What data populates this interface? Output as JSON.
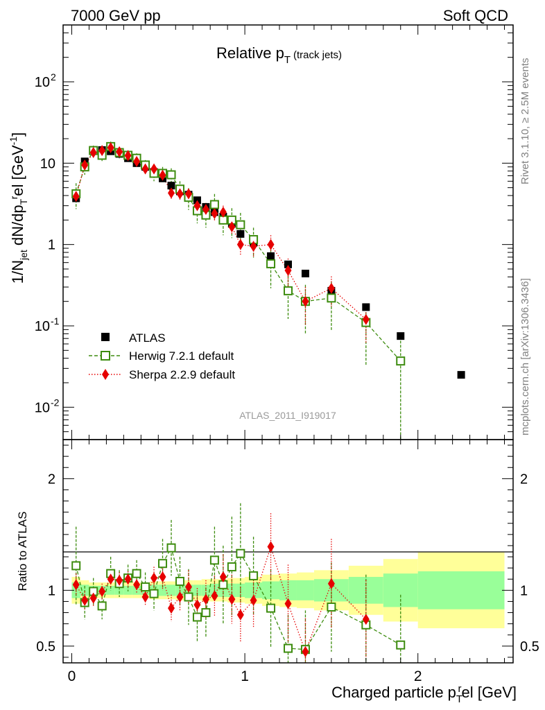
{
  "header": {
    "left": "7000 GeV pp",
    "right": "Soft QCD"
  },
  "side_text": {
    "top": "Rivet 3.1.10, ≥ 2.5M events",
    "bottom": "mcplots.cern.ch [arXiv:1306.3436]"
  },
  "analysis_id": "ATLAS_2011_I919017",
  "colors": {
    "atlas": "#000000",
    "herwig": "#3d8c0f",
    "sherpa": "#e60000",
    "band_inner": "#99ff99",
    "band_outer": "#ffff99"
  },
  "chart_data": [
    {
      "type": "scatter",
      "panel": "main",
      "title": "Relative p_T (track jets)",
      "ylabel": "1/N_jet dN/dp_T^rel [GeV^-1]",
      "yscale": "log",
      "ylim": [
        0.004,
        500
      ],
      "xlim": [
        -0.05,
        2.55
      ],
      "yticks": [
        "10^-2",
        "10^-1",
        "1",
        "10",
        "10^2"
      ],
      "legend_position": "lower-left",
      "series": [
        {
          "name": "ATLAS",
          "marker": "square-filled",
          "x": [
            0.025,
            0.075,
            0.125,
            0.175,
            0.225,
            0.275,
            0.325,
            0.375,
            0.425,
            0.475,
            0.525,
            0.575,
            0.625,
            0.675,
            0.725,
            0.775,
            0.825,
            0.875,
            0.925,
            0.975,
            1.05,
            1.15,
            1.25,
            1.35,
            1.5,
            1.7,
            1.9,
            2.25
          ],
          "y": [
            3.7,
            10.5,
            14.5,
            14.5,
            14.0,
            13.0,
            11.5,
            10.0,
            9.0,
            7.8,
            6.5,
            5.3,
            4.5,
            4.1,
            3.5,
            2.9,
            2.5,
            2.2,
            1.8,
            1.35,
            1.05,
            0.72,
            0.57,
            0.44,
            0.27,
            0.17,
            0.075,
            0.025
          ]
        },
        {
          "name": "Herwig 7.2.1 default",
          "marker": "square-open",
          "line": "dashed",
          "x": [
            0.025,
            0.075,
            0.125,
            0.175,
            0.225,
            0.275,
            0.325,
            0.375,
            0.425,
            0.475,
            0.525,
            0.575,
            0.625,
            0.675,
            0.725,
            0.775,
            0.825,
            0.875,
            0.925,
            0.975,
            1.05,
            1.15,
            1.25,
            1.35,
            1.5,
            1.7,
            1.9
          ],
          "y": [
            4.2,
            9.0,
            14.3,
            12.5,
            16.0,
            13.5,
            12.5,
            11.5,
            9.5,
            7.5,
            7.5,
            7.2,
            4.8,
            3.8,
            2.6,
            2.3,
            3.1,
            2.0,
            2.0,
            1.75,
            1.15,
            0.58,
            0.27,
            0.2,
            0.22,
            0.11,
            0.037
          ],
          "err_rel": [
            0.35,
            0.2,
            0.15,
            0.15,
            0.15,
            0.15,
            0.15,
            0.15,
            0.15,
            0.2,
            0.2,
            0.2,
            0.25,
            0.3,
            0.3,
            0.3,
            0.35,
            0.35,
            0.4,
            0.4,
            0.4,
            0.5,
            0.55,
            0.6,
            0.6,
            0.7,
            1.0
          ]
        },
        {
          "name": "Sherpa 2.2.9 default",
          "marker": "diamond-filled",
          "line": "dotted",
          "x": [
            0.025,
            0.075,
            0.125,
            0.175,
            0.225,
            0.275,
            0.325,
            0.375,
            0.425,
            0.475,
            0.525,
            0.575,
            0.625,
            0.675,
            0.725,
            0.775,
            0.825,
            0.875,
            0.925,
            0.975,
            1.05,
            1.15,
            1.25,
            1.35,
            1.5,
            1.7
          ],
          "y": [
            3.9,
            9.5,
            13.5,
            14.3,
            15.5,
            13.8,
            12.4,
            10.5,
            8.5,
            8.5,
            7.1,
            4.3,
            4.2,
            4.2,
            3.0,
            2.7,
            2.4,
            2.5,
            1.65,
            1.0,
            0.95,
            1.0,
            0.48,
            0.2,
            0.29,
            0.12
          ],
          "err_rel": [
            0.15,
            0.1,
            0.08,
            0.08,
            0.08,
            0.08,
            0.08,
            0.1,
            0.1,
            0.1,
            0.12,
            0.15,
            0.15,
            0.15,
            0.2,
            0.2,
            0.2,
            0.2,
            0.2,
            0.25,
            0.25,
            0.3,
            0.4,
            0.5,
            0.4,
            0.5
          ]
        }
      ]
    },
    {
      "type": "scatter",
      "panel": "ratio",
      "ylabel": "Ratio to ATLAS",
      "xlabel": "Charged particle p_T^rel [GeV]",
      "ylim": [
        0.35,
        2.35
      ],
      "xlim": [
        -0.05,
        2.55
      ],
      "xticks": [
        "0",
        "1",
        "2"
      ],
      "yticks": [
        "0.5",
        "1",
        "2"
      ],
      "band_edges": [
        0,
        0.05,
        0.1,
        0.15,
        0.2,
        0.25,
        0.3,
        0.35,
        0.4,
        0.45,
        0.5,
        0.55,
        0.6,
        0.65,
        0.7,
        0.75,
        0.8,
        0.85,
        0.9,
        0.95,
        1.0,
        1.1,
        1.2,
        1.3,
        1.4,
        1.6,
        1.8,
        2.0,
        2.5
      ],
      "band_inner": [
        0.07,
        0.05,
        0.04,
        0.04,
        0.04,
        0.04,
        0.04,
        0.04,
        0.04,
        0.05,
        0.05,
        0.05,
        0.05,
        0.05,
        0.05,
        0.05,
        0.06,
        0.06,
        0.06,
        0.06,
        0.07,
        0.08,
        0.09,
        0.09,
        0.1,
        0.12,
        0.15,
        0.17
      ],
      "band_outer": [
        0.12,
        0.09,
        0.07,
        0.07,
        0.07,
        0.07,
        0.07,
        0.07,
        0.07,
        0.08,
        0.08,
        0.08,
        0.09,
        0.09,
        0.09,
        0.1,
        0.1,
        0.1,
        0.11,
        0.11,
        0.12,
        0.14,
        0.15,
        0.16,
        0.18,
        0.22,
        0.28,
        0.34
      ],
      "series": [
        {
          "name": "Herwig 7.2.1 default",
          "x": [
            0.025,
            0.075,
            0.125,
            0.175,
            0.225,
            0.275,
            0.325,
            0.375,
            0.425,
            0.475,
            0.525,
            0.575,
            0.625,
            0.675,
            0.725,
            0.775,
            0.825,
            0.875,
            0.925,
            0.975,
            1.05,
            1.15,
            1.25,
            1.35,
            1.5,
            1.7,
            1.9
          ],
          "y": [
            1.22,
            0.89,
            0.99,
            0.86,
            1.15,
            1.06,
            1.11,
            1.15,
            1.03,
            0.97,
            1.24,
            1.38,
            1.08,
            0.94,
            0.76,
            0.8,
            1.27,
            1.05,
            1.21,
            1.33,
            1.13,
            0.84,
            0.48,
            0.47,
            0.85,
            0.69,
            0.51
          ],
          "err": [
            0.35,
            0.15,
            0.12,
            0.12,
            0.15,
            0.12,
            0.12,
            0.12,
            0.13,
            0.15,
            0.22,
            0.25,
            0.22,
            0.25,
            0.22,
            0.22,
            0.3,
            0.35,
            0.45,
            0.45,
            0.35,
            0.35,
            0.3,
            0.35,
            0.4,
            0.45,
            0.45
          ]
        },
        {
          "name": "Sherpa 2.2.9 default",
          "x": [
            0.025,
            0.075,
            0.125,
            0.175,
            0.225,
            0.275,
            0.325,
            0.375,
            0.425,
            0.475,
            0.525,
            0.575,
            0.625,
            0.675,
            0.725,
            0.775,
            0.825,
            0.875,
            0.925,
            0.975,
            1.05,
            1.15,
            1.25,
            1.35,
            1.5,
            1.7
          ],
          "y": [
            1.05,
            0.91,
            0.93,
            0.99,
            1.1,
            1.09,
            1.1,
            1.05,
            0.94,
            1.11,
            1.12,
            0.84,
            0.94,
            1.03,
            0.87,
            0.92,
            0.95,
            1.12,
            0.92,
            0.78,
            0.91,
            1.39,
            0.88,
            0.45,
            1.06,
            0.74
          ],
          "err": [
            0.1,
            0.08,
            0.07,
            0.07,
            0.07,
            0.07,
            0.07,
            0.07,
            0.07,
            0.1,
            0.12,
            0.12,
            0.13,
            0.15,
            0.15,
            0.17,
            0.18,
            0.2,
            0.22,
            0.25,
            0.25,
            0.3,
            0.35,
            0.3,
            0.4,
            0.35
          ]
        }
      ]
    }
  ]
}
